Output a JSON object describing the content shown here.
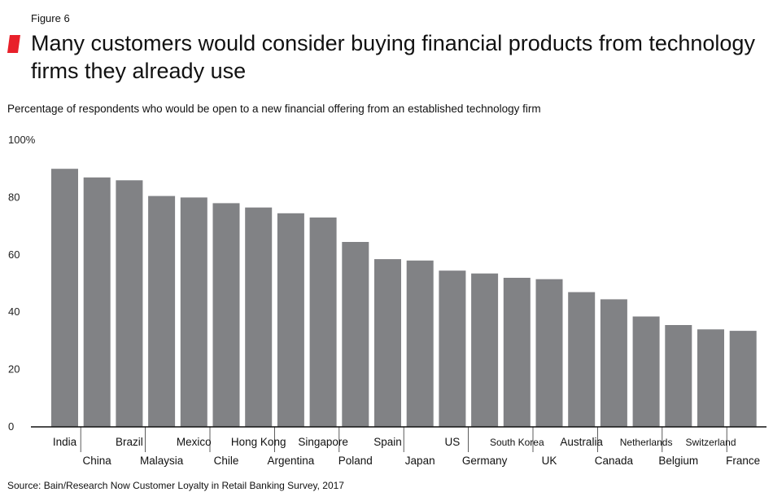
{
  "figure_label": "Figure 6",
  "colors": {
    "accent": "#e8202a",
    "bar": "#818285",
    "axis": "#111111"
  },
  "chart_data": {
    "type": "bar",
    "title": "Many customers would consider buying financial products from technology firms they already use",
    "subtitle": "Percentage of respondents who would be open to a new financial offering from an established technology firm",
    "source": "Source: Bain/Research Now Customer Loyalty in Retail Banking Survey, 2017",
    "categories": [
      "India",
      "China",
      "Brazil",
      "Malaysia",
      "Mexico",
      "Chile",
      "Hong Kong",
      "Argentina",
      "Singapore",
      "Poland",
      "Spain",
      "Japan",
      "US",
      "Germany",
      "South Korea",
      "UK",
      "Australia",
      "Canada",
      "Netherlands",
      "Belgium",
      "Switzerland",
      "France"
    ],
    "values": [
      90,
      87,
      86,
      80.5,
      80,
      78,
      76.5,
      74.5,
      73,
      64.5,
      58.5,
      58,
      54.5,
      53.5,
      52,
      51.5,
      47,
      44.5,
      38.5,
      35.5,
      34,
      33.5
    ],
    "ylim": [
      0,
      100
    ],
    "yticks": [
      0,
      20,
      40,
      60,
      80,
      100
    ],
    "ytick_labels": [
      "0",
      "20",
      "40",
      "60",
      "80",
      "100%"
    ],
    "xlabel": "",
    "ylabel": "",
    "grid": false,
    "legend": false
  }
}
